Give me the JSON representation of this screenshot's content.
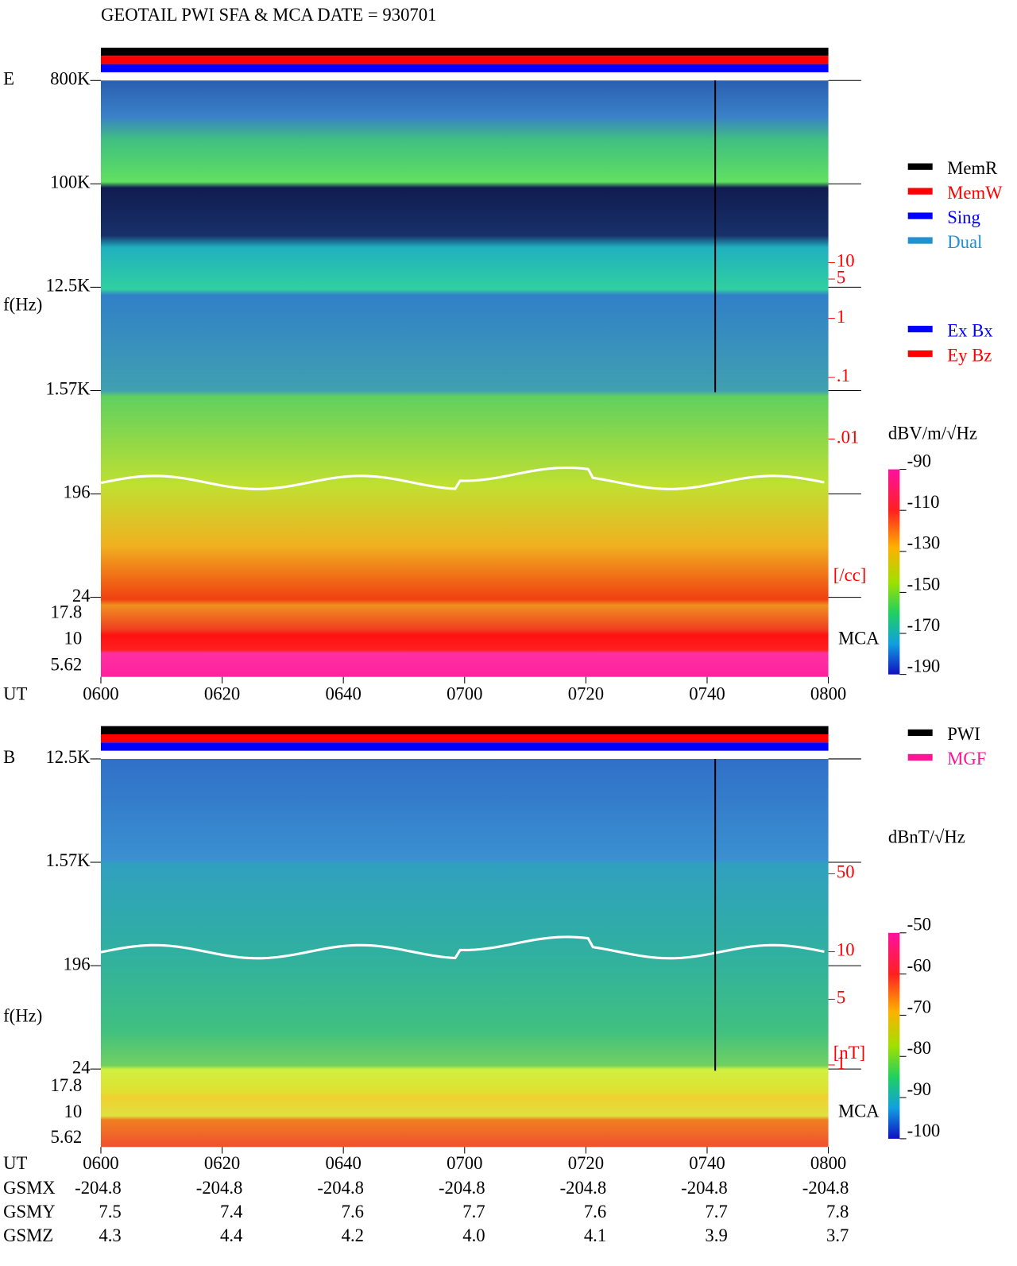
{
  "title": "GEOTAIL  PWI SFA & MCA   DATE = 930701",
  "panels": [
    {
      "label": "E",
      "ylabel": "f(Hz)",
      "yticks": [
        "800K",
        "100K",
        "12.5K",
        "1.57K",
        "196",
        "24"
      ],
      "mca_ticks": [
        "17.8",
        "10",
        "5.62"
      ],
      "mca_label": "MCA",
      "right_ticks": [
        "10",
        "5",
        "1",
        ".1",
        ".01"
      ],
      "right_unit": "[/cc]",
      "colorbar_unit": "dBV/m/√Hz",
      "colorbar_ticks": [
        "-90",
        "-110",
        "-130",
        "-150",
        "-170",
        "-190"
      ],
      "legend": [
        {
          "name": "MemR",
          "color": "#000000"
        },
        {
          "name": "MemW",
          "color": "#ff0000"
        },
        {
          "name": "Sing",
          "color": "#0000ff"
        },
        {
          "name": "Dual",
          "color": "#2090d0"
        }
      ],
      "legend2": [
        {
          "name": "Ex Bx",
          "color": "#0000ff"
        },
        {
          "name": "Ey Bz",
          "color": "#ff0000"
        }
      ]
    },
    {
      "label": "B",
      "ylabel": "f(Hz)",
      "yticks": [
        "12.5K",
        "1.57K",
        "196",
        "24"
      ],
      "mca_ticks": [
        "17.8",
        "10",
        "5.62"
      ],
      "mca_label": "MCA",
      "right_ticks": [
        "50",
        "10",
        "5",
        "1"
      ],
      "right_unit": "[nT]",
      "colorbar_unit": "dBnT/√Hz",
      "colorbar_ticks": [
        "-50",
        "-60",
        "-70",
        "-80",
        "-90",
        "-100"
      ],
      "legend": [
        {
          "name": "PWI",
          "color": "#000000"
        },
        {
          "name": "MGF",
          "color": "#ff1493"
        }
      ],
      "legend2": []
    }
  ],
  "xaxis": {
    "label": "UT",
    "ticks": [
      "0600",
      "0620",
      "0640",
      "0700",
      "0720",
      "0740",
      "0800"
    ]
  },
  "orbit": [
    {
      "name": "GSMX",
      "values": [
        "-204.8",
        "-204.8",
        "-204.8",
        "-204.8",
        "-204.8",
        "-204.8",
        "-204.8"
      ]
    },
    {
      "name": "GSMY",
      "values": [
        "7.5",
        "7.4",
        "7.6",
        "7.7",
        "7.6",
        "7.7",
        "7.8"
      ]
    },
    {
      "name": "GSMZ",
      "values": [
        "4.3",
        "4.4",
        "4.2",
        "4.0",
        "4.1",
        "3.9",
        "3.7"
      ]
    }
  ]
}
